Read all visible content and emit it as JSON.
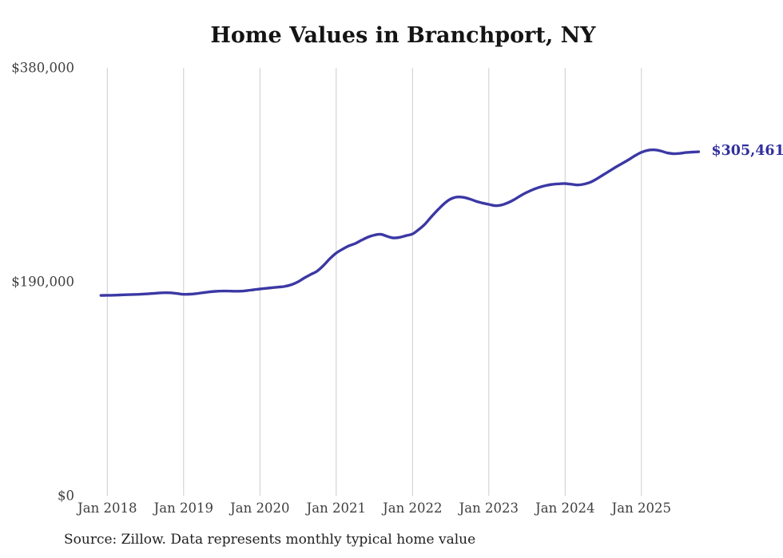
{
  "chart": {
    "title": "Home Values in Branchport, NY",
    "source_note": "Source: Zillow. Data represents monthly typical home value",
    "end_label": "$305,461",
    "latest_value_text": "$305,461",
    "colors": {
      "line": "#3b38a4",
      "end_label_text": "#322f9e",
      "gridline": "#cccccc",
      "tick_text": "#3f3f3f",
      "title_text": "#141414",
      "source_text": "#212121",
      "background": "#ffffff"
    }
  },
  "chart_data": {
    "type": "line",
    "title": "Home Values in Branchport, NY",
    "xlabel": "",
    "ylabel": "",
    "legend": "none",
    "grid": "vertical-years-only",
    "ylim": [
      0,
      380000
    ],
    "y_tick_values": [
      0,
      190000,
      380000
    ],
    "y_tick_labels": [
      "$0",
      "$190,000",
      "$380,000"
    ],
    "x_tick_labels": [
      "Jan 2018",
      "Jan 2019",
      "Jan 2020",
      "Jan 2021",
      "Jan 2022",
      "Jan 2023",
      "Jan 2024",
      "Jan 2025"
    ],
    "series": [
      {
        "name": "Monthly typical home value",
        "start_month": "2017-12",
        "frequency": "monthly",
        "latest_month": "2025-10",
        "latest_value": 305461,
        "values": [
          177900,
          178000,
          178100,
          178300,
          178500,
          178700,
          178900,
          179200,
          179600,
          180000,
          180300,
          180200,
          179600,
          178900,
          179000,
          179500,
          180300,
          181000,
          181500,
          181800,
          181800,
          181600,
          181700,
          182200,
          182900,
          183600,
          184200,
          184800,
          185300,
          186000,
          187500,
          190000,
          193500,
          196500,
          199500,
          204500,
          210500,
          215500,
          219000,
          222000,
          224000,
          227000,
          229700,
          231500,
          232200,
          230400,
          229000,
          229500,
          231000,
          232500,
          236500,
          241500,
          248000,
          254000,
          259500,
          263500,
          265300,
          265000,
          263500,
          261500,
          260000,
          258800,
          257600,
          258200,
          260200,
          263000,
          266500,
          269500,
          272000,
          274000,
          275500,
          276500,
          277000,
          277200,
          276600,
          276000,
          276800,
          278500,
          281500,
          285000,
          288500,
          292000,
          295200,
          298500,
          302000,
          305000,
          306800,
          307200,
          306300,
          304600,
          303800,
          304000,
          304800,
          305200,
          305461
        ]
      }
    ]
  }
}
